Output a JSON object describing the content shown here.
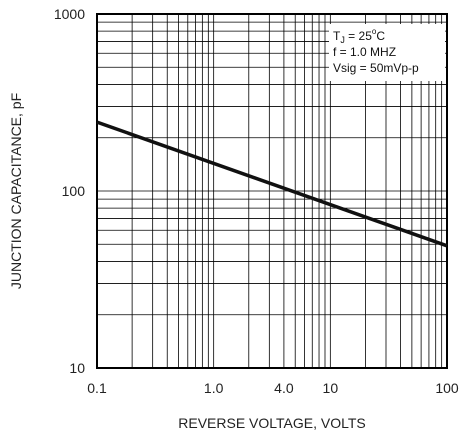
{
  "chart_data": {
    "type": "line",
    "x_scale": "log",
    "y_scale": "log",
    "xlabel": "REVERSE VOLTAGE, VOLTS",
    "ylabel": "JUNCTION CAPACITANCE, pF",
    "xlim": [
      0.1,
      100
    ],
    "ylim": [
      10,
      1000
    ],
    "x_tick_labels": [
      "0.1",
      "1.0",
      "4.0",
      "10",
      "100"
    ],
    "x_tick_values": [
      0.1,
      1,
      4,
      10,
      100
    ],
    "y_tick_labels": [
      "10",
      "100",
      "1000"
    ],
    "y_tick_values": [
      10,
      100,
      1000
    ],
    "grid": true,
    "annotation": {
      "position": "top-right",
      "lines": [
        {
          "main": "T",
          "sub": "J",
          "rest": " = 25",
          "sup": "o",
          "tail": "C"
        },
        {
          "main": "f = 1.0 MHZ"
        },
        {
          "main": "Vsig = 50mVp-p"
        }
      ]
    },
    "series": [
      {
        "color": "#111111",
        "x": [
          0.1,
          100
        ],
        "y": [
          245,
          49
        ]
      }
    ]
  }
}
